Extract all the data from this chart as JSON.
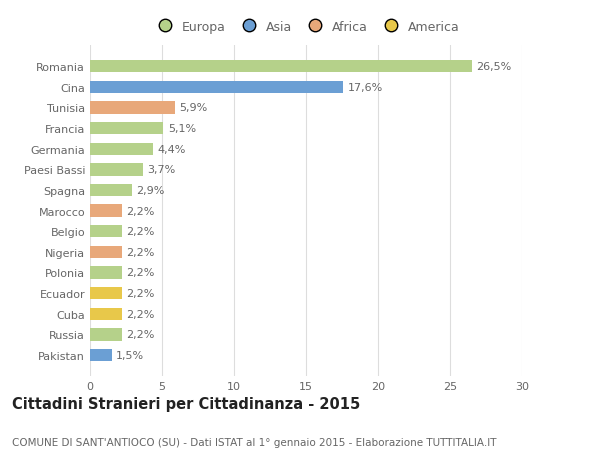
{
  "countries": [
    "Romania",
    "Cina",
    "Tunisia",
    "Francia",
    "Germania",
    "Paesi Bassi",
    "Spagna",
    "Marocco",
    "Belgio",
    "Nigeria",
    "Polonia",
    "Ecuador",
    "Cuba",
    "Russia",
    "Pakistan"
  ],
  "values": [
    26.5,
    17.6,
    5.9,
    5.1,
    4.4,
    3.7,
    2.9,
    2.2,
    2.2,
    2.2,
    2.2,
    2.2,
    2.2,
    2.2,
    1.5
  ],
  "labels": [
    "26,5%",
    "17,6%",
    "5,9%",
    "5,1%",
    "4,4%",
    "3,7%",
    "2,9%",
    "2,2%",
    "2,2%",
    "2,2%",
    "2,2%",
    "2,2%",
    "2,2%",
    "2,2%",
    "1,5%"
  ],
  "colors": [
    "#b5d18a",
    "#6b9fd4",
    "#e8a87a",
    "#b5d18a",
    "#b5d18a",
    "#b5d18a",
    "#b5d18a",
    "#e8a87a",
    "#b5d18a",
    "#e8a87a",
    "#b5d18a",
    "#e8c84a",
    "#e8c84a",
    "#b5d18a",
    "#6b9fd4"
  ],
  "legend_labels": [
    "Europa",
    "Asia",
    "Africa",
    "America"
  ],
  "legend_colors": [
    "#b5d18a",
    "#6b9fd4",
    "#e8a87a",
    "#e8c84a"
  ],
  "title": "Cittadini Stranieri per Cittadinanza - 2015",
  "subtitle": "COMUNE DI SANT'ANTIOCO (SU) - Dati ISTAT al 1° gennaio 2015 - Elaborazione TUTTITALIA.IT",
  "xlim": [
    0,
    30
  ],
  "xticks": [
    0,
    5,
    10,
    15,
    20,
    25,
    30
  ],
  "background_color": "#ffffff",
  "grid_color": "#dddddd",
  "bar_height": 0.6,
  "title_fontsize": 10.5,
  "subtitle_fontsize": 7.5,
  "legend_fontsize": 9,
  "tick_fontsize": 8,
  "value_fontsize": 8
}
